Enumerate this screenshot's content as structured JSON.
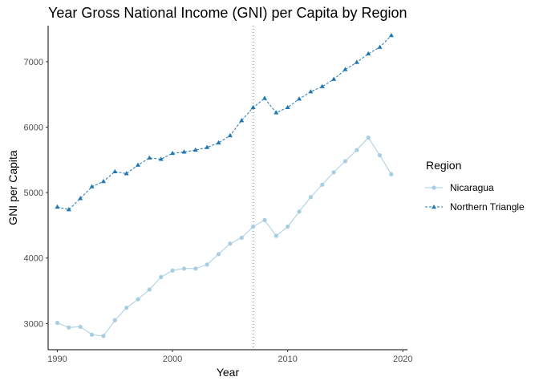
{
  "chart_data": {
    "type": "line",
    "title": "Year Gross National Income (GNI) per Capita by Region",
    "xlabel": "Year",
    "ylabel": "GNI per Capita",
    "xlim": [
      1989.2,
      2020.4
    ],
    "ylim": [
      2600,
      7550
    ],
    "x_ticks": [
      1990,
      2000,
      2010,
      2020
    ],
    "y_ticks": [
      3000,
      4000,
      5000,
      6000,
      7000
    ],
    "grid": false,
    "legend_title": "Region",
    "legend_position": "right",
    "vline": 2007,
    "x": [
      1990,
      1991,
      1992,
      1993,
      1994,
      1995,
      1996,
      1997,
      1998,
      1999,
      2000,
      2001,
      2002,
      2003,
      2004,
      2005,
      2006,
      2007,
      2008,
      2009,
      2010,
      2011,
      2012,
      2013,
      2014,
      2015,
      2016,
      2017,
      2018,
      2019
    ],
    "series": [
      {
        "name": "Nicaragua",
        "color": "#a6cee3",
        "marker": "circle",
        "linestyle": "solid",
        "values": [
          3010,
          2940,
          2950,
          2830,
          2810,
          3050,
          3240,
          3370,
          3520,
          3710,
          3810,
          3840,
          3840,
          3900,
          4060,
          4220,
          4310,
          4480,
          4580,
          4340,
          4480,
          4710,
          4930,
          5120,
          5310,
          5480,
          5650,
          5840,
          5570,
          5280
        ]
      },
      {
        "name": "Northern Triangle",
        "color": "#1f78b4",
        "marker": "triangle",
        "linestyle": "dashed",
        "values": [
          4780,
          4740,
          4910,
          5090,
          5170,
          5320,
          5290,
          5420,
          5530,
          5510,
          5600,
          5620,
          5650,
          5690,
          5760,
          5870,
          6100,
          6300,
          6440,
          6220,
          6300,
          6430,
          6540,
          6620,
          6730,
          6880,
          6990,
          7120,
          7220,
          7400
        ]
      }
    ]
  }
}
